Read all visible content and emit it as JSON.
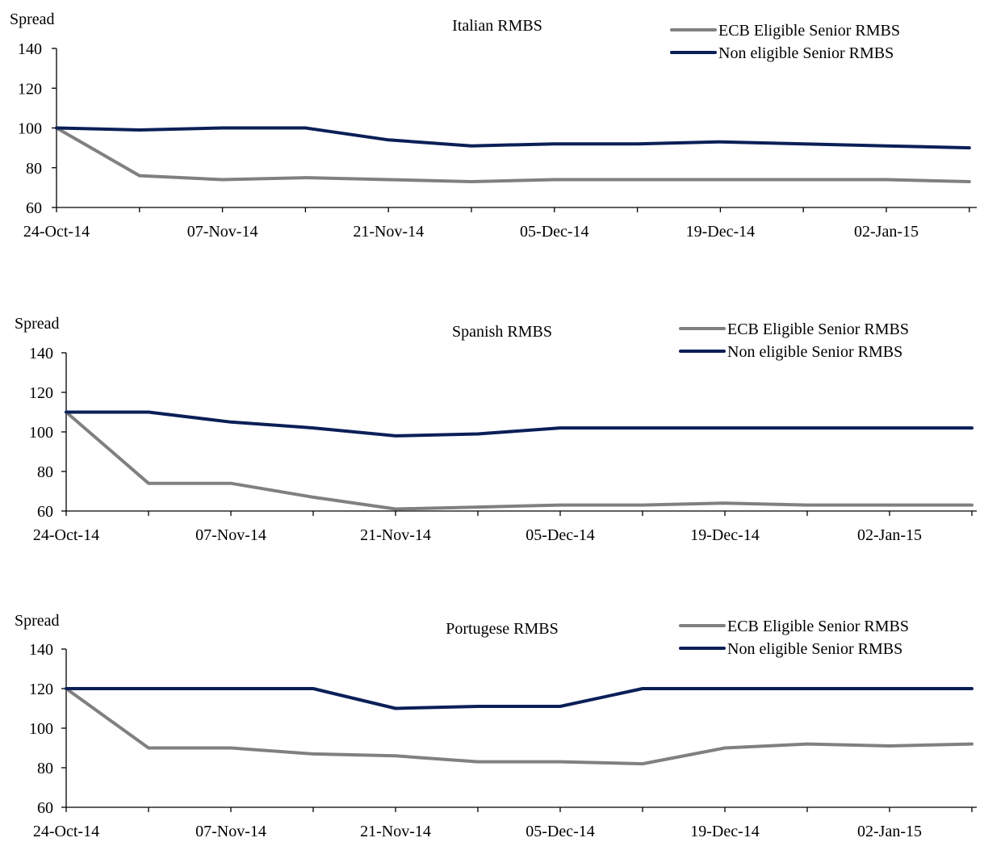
{
  "colors": {
    "eligible": "#808080",
    "non_eligible": "#0b1f57",
    "axis": "#000000"
  },
  "chart_data": [
    {
      "type": "line",
      "title": "Italian RMBS",
      "ylabel": "Spread",
      "xlabel": "",
      "ylim": [
        60,
        140
      ],
      "yticks": [
        60,
        80,
        100,
        120,
        140
      ],
      "grid": false,
      "legend": "top-right",
      "x": [
        "24-Oct-14",
        "31-Oct-14",
        "07-Nov-14",
        "14-Nov-14",
        "21-Nov-14",
        "28-Nov-14",
        "05-Dec-14",
        "12-Dec-14",
        "19-Dec-14",
        "26-Dec-14",
        "02-Jan-15",
        "09-Jan-15"
      ],
      "xtick_labels": [
        "24-Oct-14",
        "07-Nov-14",
        "21-Nov-14",
        "05-Dec-14",
        "19-Dec-14",
        "02-Jan-15"
      ],
      "series": [
        {
          "name": "ECB Eligible Senior RMBS",
          "color": "#808080",
          "values": [
            100,
            76,
            74,
            75,
            74,
            73,
            74,
            74,
            74,
            74,
            74,
            73
          ]
        },
        {
          "name": "Non eligible Senior RMBS",
          "color": "#0b1f57",
          "values": [
            100,
            99,
            100,
            100,
            94,
            91,
            92,
            92,
            93,
            92,
            91,
            90
          ]
        }
      ]
    },
    {
      "type": "line",
      "title": "Spanish RMBS",
      "ylabel": "Spread",
      "xlabel": "",
      "ylim": [
        60,
        140
      ],
      "yticks": [
        60,
        80,
        100,
        120,
        140
      ],
      "grid": false,
      "legend": "top-right",
      "x": [
        "24-Oct-14",
        "31-Oct-14",
        "07-Nov-14",
        "14-Nov-14",
        "21-Nov-14",
        "28-Nov-14",
        "05-Dec-14",
        "12-Dec-14",
        "19-Dec-14",
        "26-Dec-14",
        "02-Jan-15",
        "09-Jan-15"
      ],
      "xtick_labels": [
        "24-Oct-14",
        "07-Nov-14",
        "21-Nov-14",
        "05-Dec-14",
        "19-Dec-14",
        "02-Jan-15"
      ],
      "series": [
        {
          "name": "ECB Eligible Senior RMBS",
          "color": "#808080",
          "values": [
            110,
            74,
            74,
            67,
            61,
            62,
            63,
            63,
            64,
            63,
            63,
            63
          ]
        },
        {
          "name": "Non eligible Senior RMBS",
          "color": "#0b1f57",
          "values": [
            110,
            110,
            105,
            102,
            98,
            99,
            102,
            102,
            102,
            102,
            102,
            102
          ]
        }
      ]
    },
    {
      "type": "line",
      "title": "Portugese RMBS",
      "ylabel": "Spread",
      "xlabel": "",
      "ylim": [
        60,
        140
      ],
      "yticks": [
        60,
        80,
        100,
        120,
        140
      ],
      "grid": false,
      "legend": "top-right",
      "x": [
        "24-Oct-14",
        "31-Oct-14",
        "07-Nov-14",
        "14-Nov-14",
        "21-Nov-14",
        "28-Nov-14",
        "05-Dec-14",
        "12-Dec-14",
        "19-Dec-14",
        "26-Dec-14",
        "02-Jan-15",
        "09-Jan-15"
      ],
      "xtick_labels": [
        "24-Oct-14",
        "07-Nov-14",
        "21-Nov-14",
        "05-Dec-14",
        "19-Dec-14",
        "02-Jan-15"
      ],
      "series": [
        {
          "name": "ECB Eligible Senior RMBS",
          "color": "#808080",
          "values": [
            120,
            90,
            90,
            87,
            86,
            83,
            83,
            82,
            90,
            92,
            91,
            92
          ]
        },
        {
          "name": "Non eligible Senior RMBS",
          "color": "#0b1f57",
          "values": [
            120,
            120,
            120,
            120,
            110,
            111,
            111,
            120,
            120,
            120,
            120,
            120
          ]
        }
      ]
    }
  ]
}
